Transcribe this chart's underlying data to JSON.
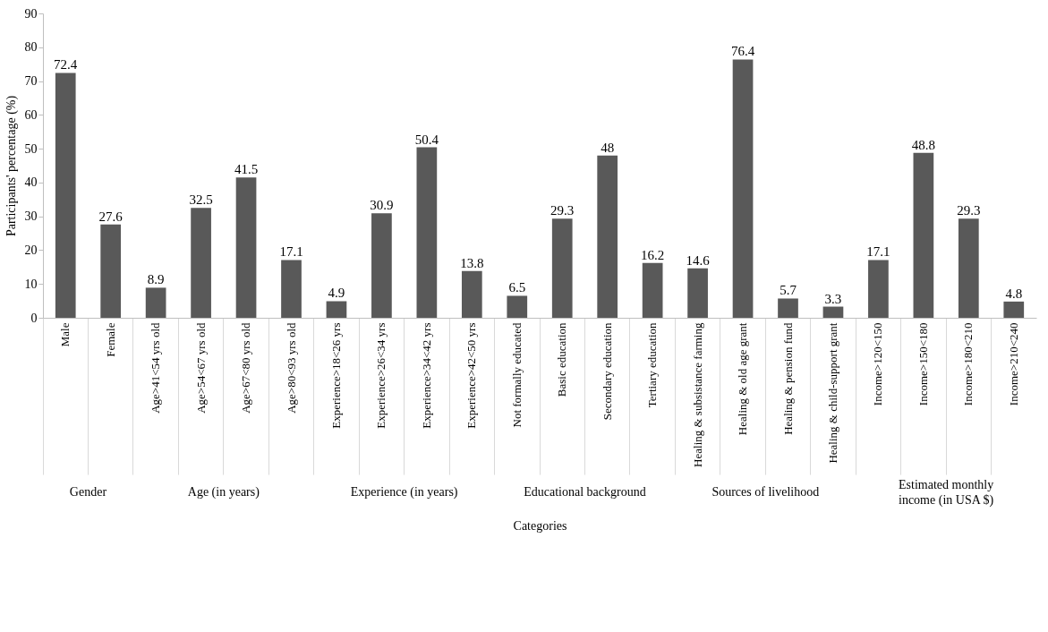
{
  "chart_data": {
    "type": "bar",
    "xlabel": "Categories",
    "ylabel": "Participants' percentage (%)",
    "categories": [
      "Male",
      "Female",
      "Age>41<54 yrs old",
      "Age>54<67 yrs old",
      "Age>67<80 yrs old",
      "Age>80<93 yrs old",
      "Experience>18<26 yrs",
      "Experience>26<34 yrs",
      "Experience>34<42 yrs",
      "Experience>42<50 yrs",
      "Not formally educated",
      "Basic education",
      "Secondary education",
      "Tertiary education",
      "Healing & subsistance farming",
      "Healing & old age grant",
      "Healing & pension fund",
      "Healing & child-support grant",
      "Income>120<150",
      "Income>150<180",
      "Income>180<210",
      "Income>210<240"
    ],
    "values": [
      72.4,
      27.6,
      8.9,
      32.5,
      41.5,
      17.1,
      4.9,
      30.9,
      50.4,
      13.8,
      6.5,
      29.3,
      48,
      16.2,
      14.6,
      76.4,
      5.7,
      3.3,
      17.1,
      48.8,
      29.3,
      4.8
    ],
    "color": "#595959",
    "data_labels": true,
    "grid": false,
    "ylim": [
      0,
      90
    ],
    "yticks": [
      0,
      10,
      20,
      30,
      40,
      50,
      60,
      70,
      80,
      90
    ],
    "annotations": [
      "Gender",
      "Age (in years)",
      "Experience (in years)",
      "Educational background",
      "Sources of livelihood",
      "Estimated monthly income (in USA $)"
    ]
  }
}
